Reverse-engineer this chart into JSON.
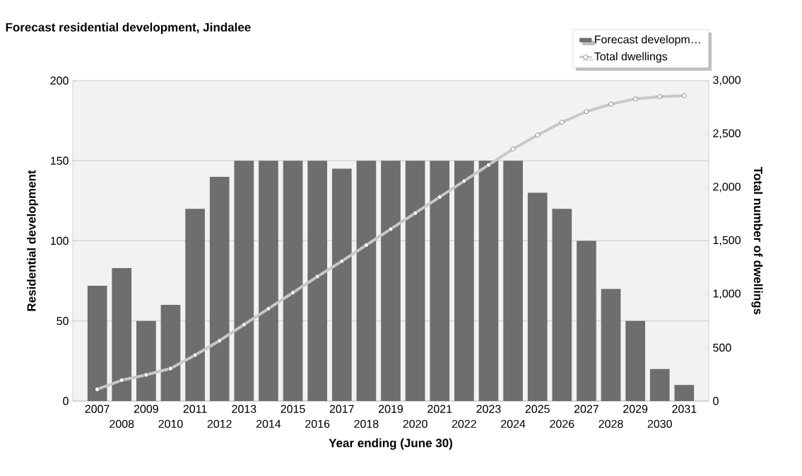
{
  "chart_data": {
    "type": "bar",
    "title": "Forecast residential development, Jindalee",
    "xlabel": "Year ending (June 30)",
    "ylabel": "Residential development",
    "y2label": "Total number of dwellings",
    "categories": [
      "2007",
      "2008",
      "2009",
      "2010",
      "2011",
      "2012",
      "2013",
      "2014",
      "2015",
      "2016",
      "2017",
      "2018",
      "2019",
      "2020",
      "2021",
      "2022",
      "2023",
      "2024",
      "2025",
      "2026",
      "2027",
      "2028",
      "2029",
      "2030",
      "2031"
    ],
    "series": [
      {
        "name": "Forecast developm…",
        "color": "#6e6e6e",
        "values": [
          72,
          83,
          50,
          60,
          120,
          140,
          150,
          150,
          150,
          150,
          145,
          150,
          150,
          150,
          150,
          150,
          150,
          150,
          130,
          120,
          100,
          70,
          50,
          20,
          10
        ]
      },
      {
        "name": "Total dwellings",
        "type": "line",
        "axis": "y2",
        "color": "#c8c8c8",
        "values": [
          110,
          195,
          245,
          305,
          430,
          565,
          715,
          865,
          1015,
          1165,
          1310,
          1460,
          1610,
          1760,
          1910,
          2060,
          2210,
          2360,
          2490,
          2610,
          2710,
          2780,
          2830,
          2850,
          2860
        ]
      }
    ],
    "ylim": [
      0,
      200
    ],
    "yticks": [
      0,
      50,
      100,
      150,
      200
    ],
    "y2lim": [
      0,
      3000
    ],
    "y2ticks": [
      {
        "value": 0,
        "label": "0"
      },
      {
        "value": 500,
        "label": "500"
      },
      {
        "value": 1000,
        "label": "1,000"
      },
      {
        "value": 1500,
        "label": "1,500"
      },
      {
        "value": 2000,
        "label": "2,000"
      },
      {
        "value": 2500,
        "label": "2,500"
      },
      {
        "value": 3000,
        "label": "3,000"
      }
    ],
    "grid": "y",
    "legend": "top right",
    "marker": "circle"
  }
}
